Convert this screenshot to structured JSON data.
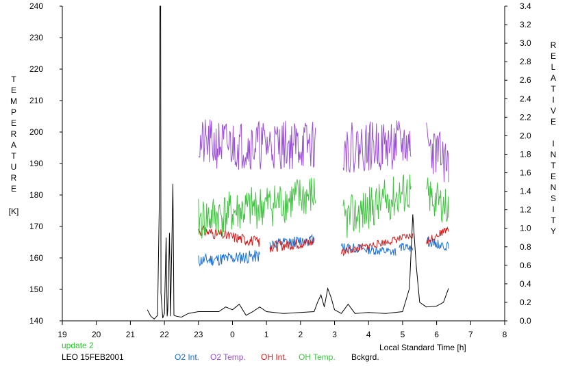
{
  "chart_data": {
    "type": "line",
    "left_axis_label": [
      "T",
      "E",
      "M",
      "P",
      "E",
      "R",
      "A",
      "T",
      "U",
      "R",
      "E"
    ],
    "left_axis_unit": "[K]",
    "right_axis_label_1": [
      "R",
      "E",
      "L",
      "A",
      "T",
      "I",
      "V",
      "E"
    ],
    "right_axis_label_2": [
      "I",
      "N",
      "T",
      "E",
      "N",
      "S",
      "I",
      "T",
      "Y"
    ],
    "xlabel": "Local Standard Time [h]",
    "update_note": "update 2",
    "station": "LEO 15FEB2001",
    "colors": {
      "frame": "#000000",
      "update": "#22cc22",
      "o2_int": "#1a6fd6",
      "o2_temp": "#9a4fd8",
      "oh_int": "#d61a1a",
      "oh_temp": "#44c444",
      "bckgrd": "#000000"
    },
    "left_axis": {
      "min": 140,
      "max": 240,
      "ticks": [
        "140",
        "150",
        "160",
        "170",
        "180",
        "190",
        "200",
        "210",
        "220",
        "230",
        "240"
      ]
    },
    "right_axis": {
      "min": 0,
      "max": 3.4,
      "ticks": [
        "0.0",
        "0.2",
        "0.4",
        "0.6",
        "0.8",
        "1.0",
        "1.2",
        "1.4",
        "1.6",
        "1.8",
        "2.0",
        "2.2",
        "2.4",
        "2.6",
        "2.8",
        "3.0",
        "3.2",
        "3.4"
      ]
    },
    "x_axis": {
      "min": 19,
      "max": 32,
      "tick_labels": [
        "19",
        "20",
        "21",
        "22",
        "23",
        "0",
        "1",
        "2",
        "3",
        "4",
        "5",
        "6",
        "7",
        "8"
      ]
    },
    "series": [
      {
        "name": "O2 Int.",
        "color_key": "o2_int",
        "axis": "right",
        "segments": [
          {
            "start": 23.0,
            "end": 24.8,
            "base": 0.65,
            "end_val": 0.7,
            "noise": 0.07,
            "seed": 11,
            "step": 0.02
          },
          {
            "start": 25.1,
            "end": 26.4,
            "base": 0.82,
            "end_val": 0.88,
            "noise": 0.06,
            "seed": 12,
            "step": 0.02
          },
          {
            "start": 27.2,
            "end": 28.8,
            "base": 0.8,
            "end_val": 0.74,
            "noise": 0.05,
            "seed": 13,
            "step": 0.02
          },
          {
            "start": 28.9,
            "end": 29.3,
            "base": 0.8,
            "end_val": 0.78,
            "noise": 0.05,
            "seed": 14,
            "step": 0.02
          },
          {
            "start": 29.7,
            "end": 30.35,
            "base": 0.86,
            "end_val": 0.8,
            "noise": 0.05,
            "seed": 15,
            "step": 0.02
          }
        ]
      },
      {
        "name": "O2 Temp.",
        "color_key": "o2_temp",
        "axis": "left",
        "segments": [
          {
            "start": 23.0,
            "end": 26.45,
            "base": 196,
            "end_val": 196,
            "noise": 8,
            "seed": 21,
            "step": 0.02
          },
          {
            "start": 27.25,
            "end": 29.25,
            "base": 195,
            "end_val": 196,
            "noise": 8,
            "seed": 22,
            "step": 0.02
          },
          {
            "start": 29.7,
            "end": 30.35,
            "base": 196,
            "end_val": 190,
            "noise": 8,
            "seed": 23,
            "step": 0.02
          }
        ]
      },
      {
        "name": "OH Int.",
        "color_key": "oh_int",
        "axis": "right",
        "segments": [
          {
            "start": 23.0,
            "end": 24.8,
            "base": 0.98,
            "end_val": 0.85,
            "noise": 0.06,
            "seed": 31,
            "step": 0.02
          },
          {
            "start": 25.1,
            "end": 26.4,
            "base": 0.8,
            "end_val": 0.85,
            "noise": 0.06,
            "seed": 32,
            "step": 0.02
          },
          {
            "start": 27.2,
            "end": 29.3,
            "base": 0.74,
            "end_val": 0.92,
            "noise": 0.04,
            "seed": 33,
            "step": 0.02
          },
          {
            "start": 29.7,
            "end": 30.35,
            "base": 0.86,
            "end_val": 1.0,
            "noise": 0.04,
            "seed": 34,
            "step": 0.02
          }
        ]
      },
      {
        "name": "OH Temp.",
        "color_key": "oh_temp",
        "axis": "left",
        "segments": [
          {
            "start": 23.0,
            "end": 26.45,
            "base": 172,
            "end_val": 180,
            "noise": 7,
            "seed": 41,
            "step": 0.02
          },
          {
            "start": 27.25,
            "end": 29.25,
            "base": 172,
            "end_val": 182,
            "noise": 7,
            "seed": 42,
            "step": 0.02
          },
          {
            "start": 29.7,
            "end": 30.35,
            "base": 180,
            "end_val": 176,
            "noise": 6,
            "seed": 43,
            "step": 0.02
          }
        ]
      },
      {
        "name": "Bckgrd.",
        "color_key": "bckgrd",
        "axis": "right",
        "points": [
          [
            21.5,
            0.12
          ],
          [
            21.6,
            0.05
          ],
          [
            21.7,
            0.02
          ],
          [
            21.8,
            0.06
          ],
          [
            21.85,
            1.25
          ],
          [
            21.87,
            3.4
          ],
          [
            21.89,
            3.4
          ],
          [
            21.9,
            0.3
          ],
          [
            21.95,
            0.03
          ],
          [
            22.0,
            0.08
          ],
          [
            22.05,
            0.9
          ],
          [
            22.08,
            0.05
          ],
          [
            22.1,
            0.12
          ],
          [
            22.15,
            0.95
          ],
          [
            22.18,
            0.05
          ],
          [
            22.25,
            1.48
          ],
          [
            22.28,
            0.06
          ],
          [
            22.35,
            0.05
          ],
          [
            22.5,
            0.04
          ],
          [
            22.7,
            0.08
          ],
          [
            23.0,
            0.1
          ],
          [
            23.3,
            0.1
          ],
          [
            23.6,
            0.1
          ],
          [
            23.8,
            0.15
          ],
          [
            24.0,
            0.12
          ],
          [
            24.2,
            0.18
          ],
          [
            24.4,
            0.06
          ],
          [
            24.6,
            0.1
          ],
          [
            24.8,
            0.15
          ],
          [
            25.0,
            0.1
          ],
          [
            25.5,
            0.08
          ],
          [
            26.0,
            0.09
          ],
          [
            26.4,
            0.1
          ],
          [
            26.5,
            0.2
          ],
          [
            26.6,
            0.28
          ],
          [
            26.7,
            0.15
          ],
          [
            26.8,
            0.35
          ],
          [
            26.9,
            0.25
          ],
          [
            27.0,
            0.12
          ],
          [
            27.2,
            0.08
          ],
          [
            27.4,
            0.18
          ],
          [
            27.6,
            0.08
          ],
          [
            28.0,
            0.09
          ],
          [
            28.5,
            0.08
          ],
          [
            29.0,
            0.1
          ],
          [
            29.2,
            0.35
          ],
          [
            29.3,
            1.15
          ],
          [
            29.4,
            0.6
          ],
          [
            29.5,
            0.2
          ],
          [
            29.7,
            0.15
          ],
          [
            30.0,
            0.16
          ],
          [
            30.2,
            0.2
          ],
          [
            30.35,
            0.35
          ]
        ]
      }
    ]
  }
}
